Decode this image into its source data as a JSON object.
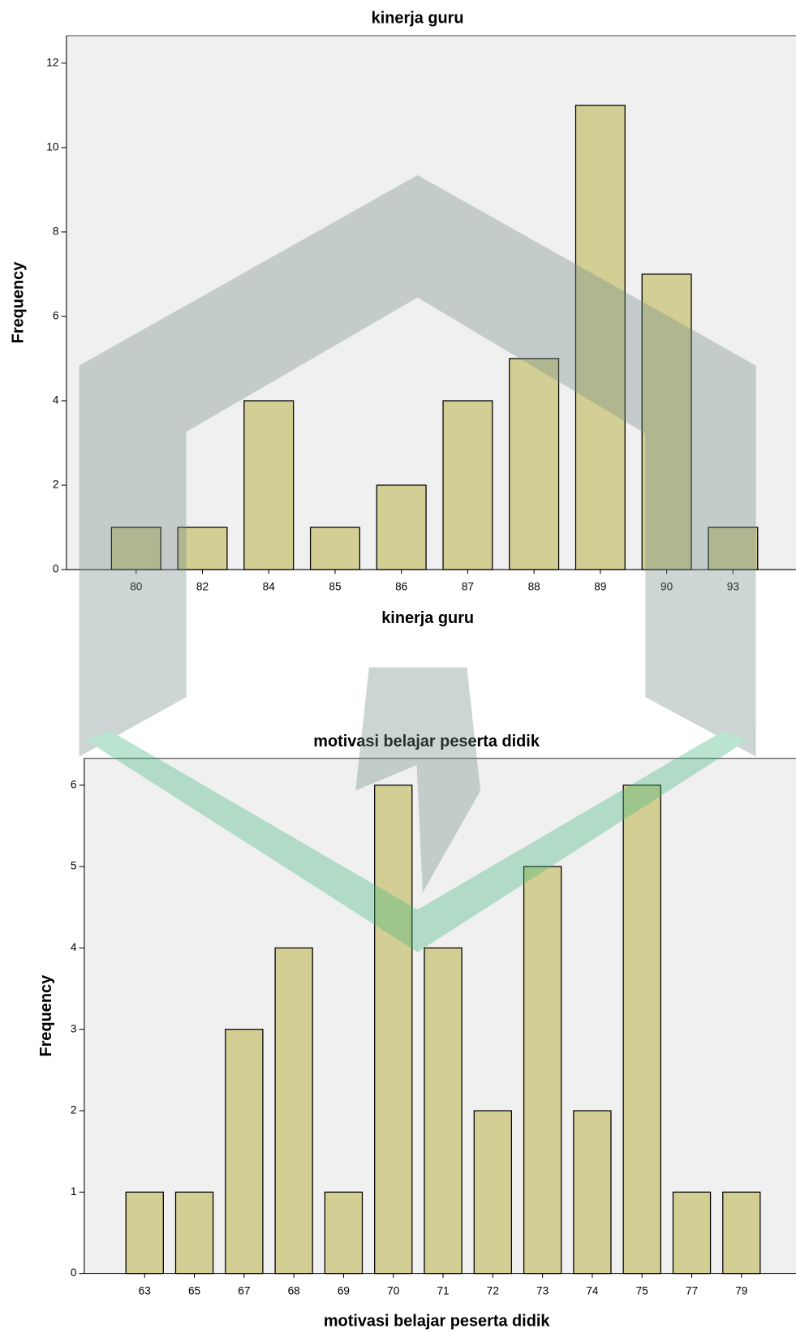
{
  "chart_data": [
    {
      "type": "bar",
      "title": "kinerja guru",
      "x_label": "kinerja guru",
      "y_label": "Frequency",
      "categories": [
        "80",
        "82",
        "84",
        "85",
        "86",
        "87",
        "88",
        "89",
        "90",
        "93"
      ],
      "values": [
        1,
        1,
        4,
        1,
        2,
        4,
        5,
        11,
        7,
        1
      ],
      "color": "#d3ce94",
      "ylim": [
        0,
        12.65
      ],
      "yticks": [
        0,
        2,
        4,
        6,
        8,
        10,
        12
      ]
    },
    {
      "type": "bar",
      "title": "motivasi belajar peserta didik",
      "x_label": "motivasi belajar peserta didik",
      "y_label": "Frequency",
      "categories": [
        "63",
        "65",
        "67",
        "68",
        "69",
        "70",
        "71",
        "72",
        "73",
        "74",
        "75",
        "77",
        "79"
      ],
      "values": [
        1,
        1,
        3,
        4,
        1,
        6,
        4,
        2,
        5,
        2,
        6,
        1,
        1
      ],
      "color": "#d3ce94",
      "ylim": [
        0,
        6.33
      ],
      "yticks": [
        0,
        1,
        2,
        3,
        4,
        5,
        6
      ]
    }
  ]
}
